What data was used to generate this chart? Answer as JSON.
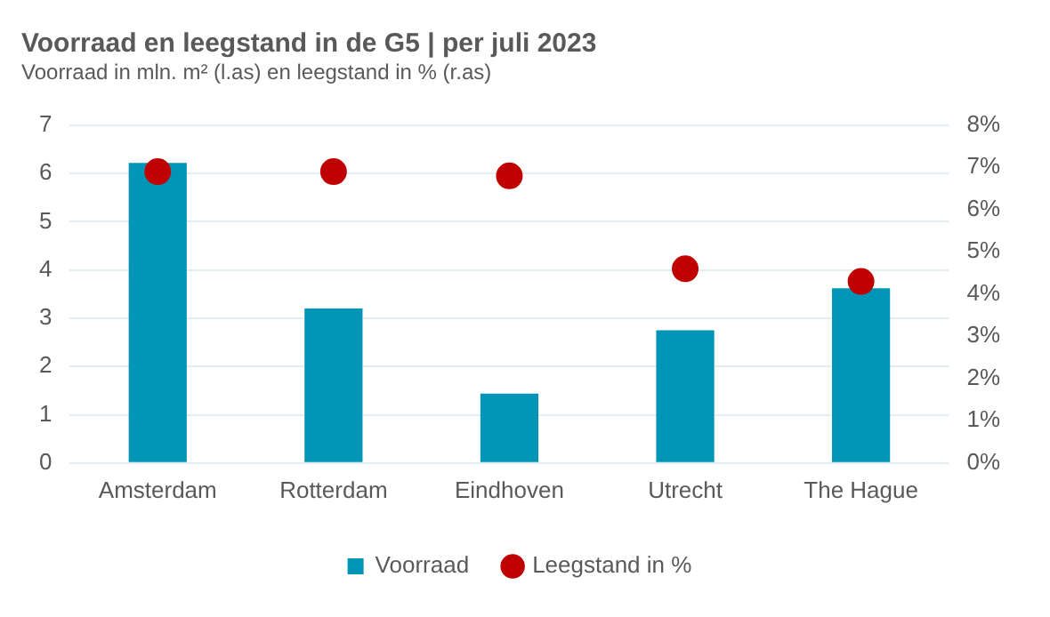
{
  "chart_data": {
    "type": "bar",
    "title": "Voorraad en leegstand in de G5 | per juli 2023",
    "subtitle": "Voorraad in mln. m² (l.as) en leegstand in % (r.as)",
    "categories": [
      "Amsterdam",
      "Rotterdam",
      "Eindhoven",
      "Utrecht",
      "The Hague"
    ],
    "series": [
      {
        "name": "Voorraad",
        "color": "#0095b6",
        "values": [
          6.22,
          3.2,
          1.44,
          2.75,
          3.62
        ]
      },
      {
        "name": "Leegstand in %",
        "type": "scatter",
        "axis": "y2",
        "color": "#c00000",
        "values": [
          6.9,
          6.9,
          6.8,
          4.6,
          4.3
        ]
      }
    ],
    "ylim": [
      0,
      7
    ],
    "yticks": [
      0,
      1,
      2,
      3,
      4,
      5,
      6,
      7
    ],
    "y2lim": [
      0,
      8
    ],
    "y2ticks": [
      {
        "value": 0,
        "label": "0%"
      },
      {
        "value": 1,
        "label": "1%"
      },
      {
        "value": 2,
        "label": "2%"
      },
      {
        "value": 3,
        "label": "3%"
      },
      {
        "value": 4,
        "label": "4%"
      },
      {
        "value": 5,
        "label": "5%"
      },
      {
        "value": 6,
        "label": "6%"
      },
      {
        "value": 7,
        "label": "7%"
      },
      {
        "value": 8,
        "label": "8%"
      }
    ],
    "grid": "y",
    "legend": "bottom",
    "marker": "circle"
  }
}
